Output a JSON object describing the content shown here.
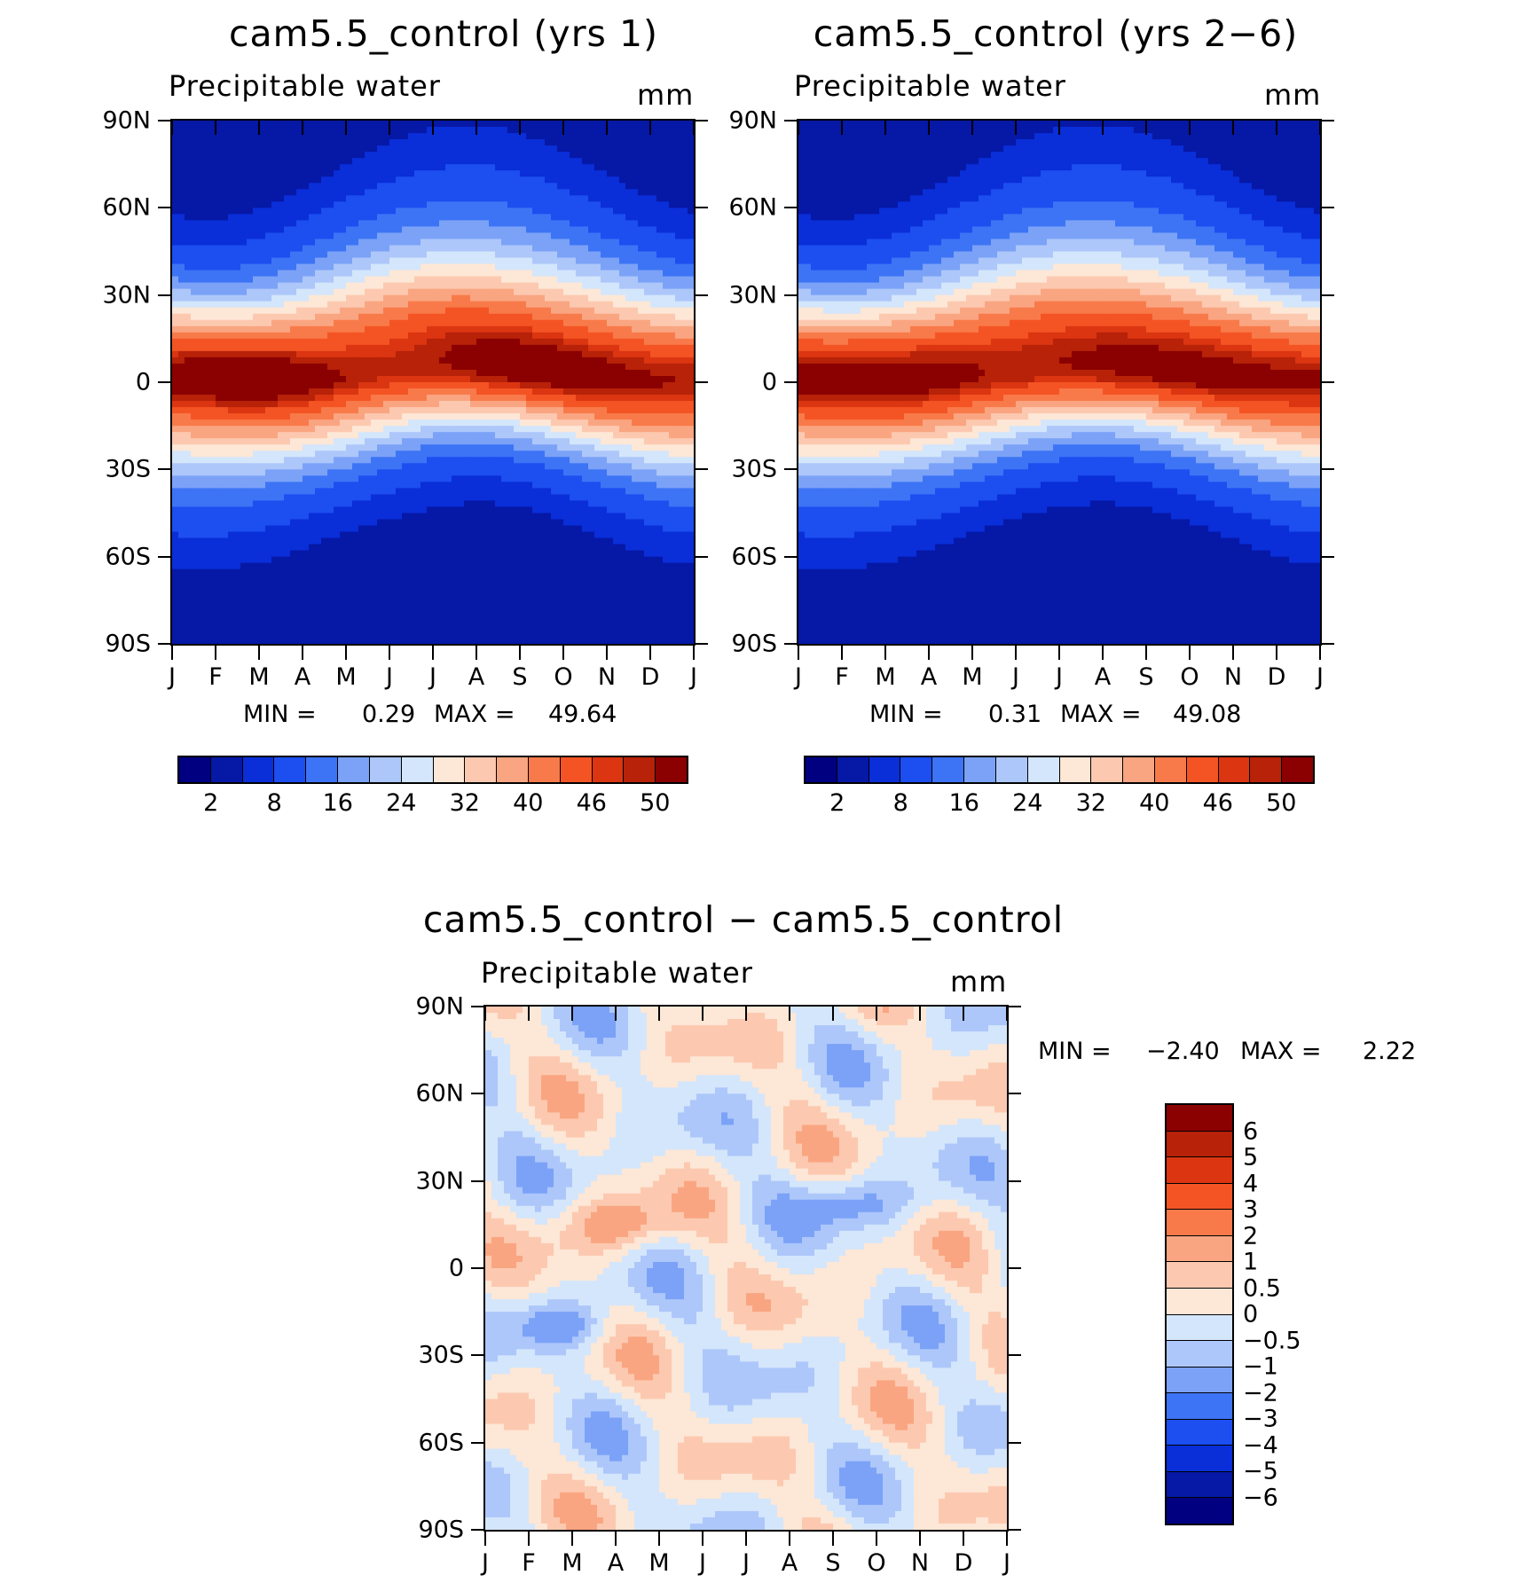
{
  "chart_data": [
    {
      "type": "heatmap",
      "title": "cam5.5_control (yrs 1)",
      "subtitle": "Precipitable water",
      "units": "mm",
      "x_ticks": [
        "J",
        "F",
        "M",
        "A",
        "M",
        "J",
        "J",
        "A",
        "S",
        "O",
        "N",
        "D",
        "J"
      ],
      "y_ticks": [
        "90N",
        "60N",
        "30N",
        "0",
        "30S",
        "60S",
        "90S"
      ],
      "min_label": "MIN =",
      "min_value": "0.29",
      "max_label": "MAX =",
      "max_value": "49.64",
      "colorbar_labels": [
        "2",
        "8",
        "16",
        "24",
        "32",
        "40",
        "46",
        "50"
      ],
      "colorbar_colors": [
        "#000080",
        "#0618a6",
        "#0a2ed8",
        "#1c4ef0",
        "#3d74f5",
        "#7ba2f7",
        "#adc7fa",
        "#d4e6fb",
        "#fde7d6",
        "#fcc9b0",
        "#faa581",
        "#f87a4a",
        "#f45424",
        "#db3511",
        "#b72208",
        "#8b0000"
      ],
      "contour_levels": [
        1,
        2,
        4,
        8,
        12,
        16,
        20,
        24,
        28,
        32,
        36,
        40,
        44,
        46,
        48
      ]
    },
    {
      "type": "heatmap",
      "title": "cam5.5_control (yrs 2−6)",
      "subtitle": "Precipitable water",
      "units": "mm",
      "x_ticks": [
        "J",
        "F",
        "M",
        "A",
        "M",
        "J",
        "J",
        "A",
        "S",
        "O",
        "N",
        "D",
        "J"
      ],
      "y_ticks": [
        "90N",
        "60N",
        "30N",
        "0",
        "30S",
        "60S",
        "90S"
      ],
      "min_label": "MIN =",
      "min_value": "0.31",
      "max_label": "MAX =",
      "max_value": "49.08",
      "colorbar_labels": [
        "2",
        "8",
        "16",
        "24",
        "32",
        "40",
        "46",
        "50"
      ],
      "colorbar_colors": [
        "#000080",
        "#0618a6",
        "#0a2ed8",
        "#1c4ef0",
        "#3d74f5",
        "#7ba2f7",
        "#adc7fa",
        "#d4e6fb",
        "#fde7d6",
        "#fcc9b0",
        "#faa581",
        "#f87a4a",
        "#f45424",
        "#db3511",
        "#b72208",
        "#8b0000"
      ],
      "contour_levels": [
        1,
        2,
        4,
        8,
        12,
        16,
        20,
        24,
        28,
        32,
        36,
        40,
        44,
        46,
        48
      ]
    },
    {
      "type": "heatmap",
      "title": "cam5.5_control − cam5.5_control",
      "subtitle": "Precipitable water",
      "units": "mm",
      "x_ticks": [
        "J",
        "F",
        "M",
        "A",
        "M",
        "J",
        "J",
        "A",
        "S",
        "O",
        "N",
        "D",
        "J"
      ],
      "y_ticks": [
        "90N",
        "60N",
        "30N",
        "0",
        "30S",
        "60S",
        "90S"
      ],
      "min_label": "MIN =",
      "min_value": "−2.40",
      "max_label": "MAX =",
      "max_value": "2.22",
      "colorbar_labels": [
        "6",
        "5",
        "4",
        "3",
        "2",
        "1",
        "0.5",
        "0",
        "−0.5",
        "−1",
        "−2",
        "−3",
        "−4",
        "−5",
        "−6"
      ],
      "colorbar_colors": [
        "#8b0000",
        "#b72208",
        "#db3511",
        "#f45424",
        "#f87a4a",
        "#faa581",
        "#fcc9b0",
        "#fde7d6",
        "#d4e6fb",
        "#adc7fa",
        "#7ba2f7",
        "#3d74f5",
        "#1c4ef0",
        "#0a2ed8",
        "#0618a6",
        "#000080"
      ],
      "contour_levels": [
        -6,
        -5,
        -4,
        -3,
        -2,
        -1,
        -0.5,
        0,
        0.5,
        1,
        2,
        3,
        4,
        5,
        6
      ]
    }
  ]
}
